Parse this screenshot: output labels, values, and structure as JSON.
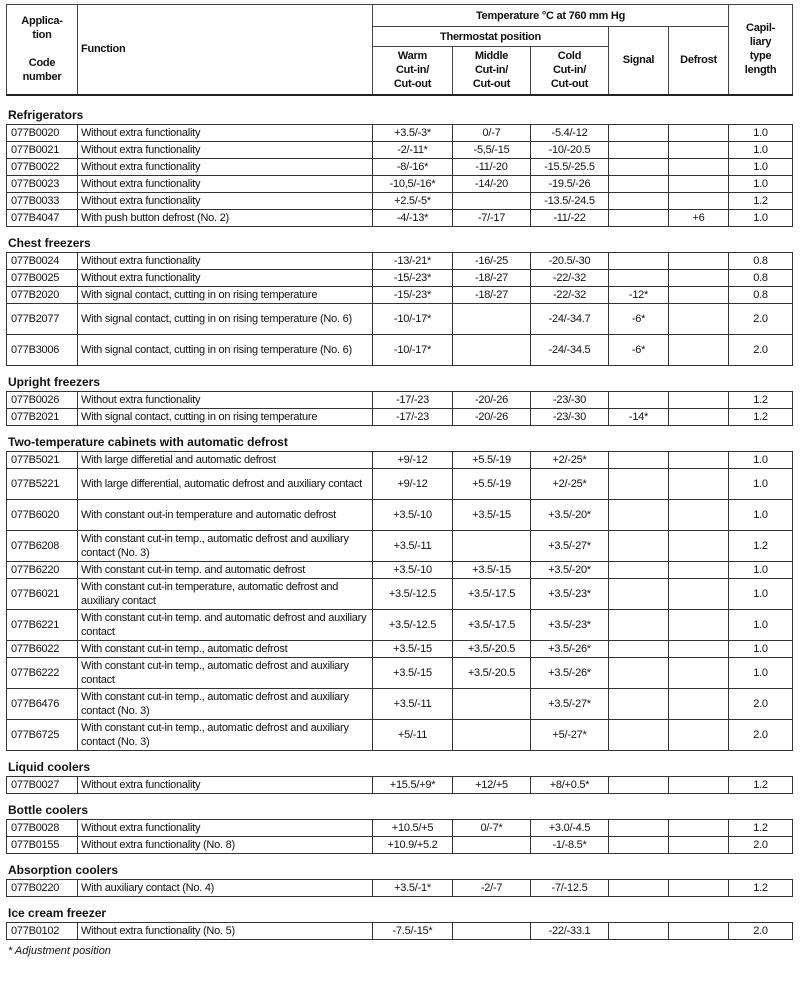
{
  "header": {
    "app_code": "Applica-\ntion\n\nCode\nnumber",
    "function": "Function",
    "temperature": "Temperature °C at 760 mm Hg",
    "thermostat": "Thermostat position",
    "warm": "Warm\nCut-in/\nCut-out",
    "middle": "Middle\nCut-in/\nCut-out",
    "cold": "Cold\nCut-in/\nCut-out",
    "signal": "Signal",
    "defrost": "Defrost",
    "capillary": "Capil-\nliary\ntype\nlength"
  },
  "sections": [
    {
      "title": "Refrigerators",
      "rows": [
        [
          "077B0020",
          "Without extra functionality",
          "+3.5/-3*",
          "0/-7",
          "-5.4/-12",
          "",
          "",
          "1.0"
        ],
        [
          "077B0021",
          "Without extra functionality",
          "-2/-11*",
          "-5,5/-15",
          "-10/-20.5",
          "",
          "",
          "1.0"
        ],
        [
          "077B0022",
          "Without extra functionality",
          "-8/-16*",
          "-11/-20",
          "-15.5/-25.5",
          "",
          "",
          "1.0"
        ],
        [
          "077B0023",
          "Without extra functionality",
          "-10,5/-16*",
          "-14/-20",
          "-19.5/-26",
          "",
          "",
          "1.0"
        ],
        [
          "077B0033",
          "Without extra functionality",
          "+2.5/-5*",
          "",
          "-13.5/-24.5",
          "",
          "",
          "1.2"
        ],
        [
          "077B4047",
          "With push button defrost (No. 2)",
          "-4/-13*",
          "-7/-17",
          "-11/-22",
          "",
          "+6",
          "1.0"
        ]
      ]
    },
    {
      "title": "Chest freezers",
      "rows": [
        [
          "077B0024",
          "Without extra functionality",
          "-13/-21*",
          "-16/-25",
          "-20.5/-30",
          "",
          "",
          "0.8"
        ],
        [
          "077B0025",
          "Without extra functionality",
          "-15/-23*",
          "-18/-27",
          "-22/-32",
          "",
          "",
          "0.8"
        ],
        [
          "077B2020",
          "With signal contact, cutting in on rising temperature",
          "-15/-23*",
          "-18/-27",
          "-22/-32",
          "-12*",
          "",
          "0.8"
        ],
        [
          "077B2077",
          "With signal contact, cutting in on rising temperature (No. 6)",
          "-10/-17*",
          "",
          "-24/-34.7",
          "-6*",
          "",
          "2.0"
        ],
        [
          "077B3006",
          "With signal contact, cutting in on rising temperature (No. 6)",
          "-10/-17*",
          "",
          "-24/-34.5",
          "-6*",
          "",
          "2.0"
        ]
      ]
    },
    {
      "title": "Upright freezers",
      "rows": [
        [
          "077B0026",
          "Without extra functionality",
          "-17/-23",
          "-20/-26",
          "-23/-30",
          "",
          "",
          "1.2"
        ],
        [
          "077B2021",
          "With signal contact, cutting in on rising temperature",
          "-17/-23",
          "-20/-26",
          "-23/-30",
          "-14*",
          "",
          "1.2"
        ]
      ]
    },
    {
      "title": "Two-temperature cabinets with automatic defrost",
      "rows": [
        [
          "077B5021",
          "With large differetial and automatic defrost",
          "+9/-12",
          "+5.5/-19",
          "+2/-25*",
          "",
          "",
          "1.0"
        ],
        [
          "077B5221",
          "With large differential, automatic defrost and auxiliary contact",
          "+9/-12",
          "+5.5/-19",
          "+2/-25*",
          "",
          "",
          "1.0"
        ],
        [
          "077B6020",
          "With constant out-in temperature and automatic defrost",
          "+3.5/-10",
          "+3.5/-15",
          "+3.5/-20*",
          "",
          "",
          "1.0"
        ],
        [
          "077B6208",
          "With constant cut-in temp., automatic defrost and auxiliary contact (No. 3)",
          "+3.5/-11",
          "",
          "+3.5/-27*",
          "",
          "",
          "1.2"
        ],
        [
          "077B6220",
          "With constant cut-in temp. and automatic defrost",
          "+3.5/-10",
          "+3.5/-15",
          "+3.5/-20*",
          "",
          "",
          "1.0"
        ],
        [
          "077B6021",
          "With constant cut-in temperature, automatic defrost and auxiliary contact",
          "+3.5/-12.5",
          "+3.5/-17.5",
          "+3.5/-23*",
          "",
          "",
          "1.0"
        ],
        [
          "077B6221",
          "With constant cut-in temp. and automatic defrost and auxiliary contact",
          "+3.5/-12.5",
          "+3.5/-17.5",
          "+3.5/-23*",
          "",
          "",
          "1.0"
        ],
        [
          "077B6022",
          "With constant cut-in temp., automatic defrost",
          "+3.5/-15",
          "+3.5/-20.5",
          "+3.5/-26*",
          "",
          "",
          "1.0"
        ],
        [
          "077B6222",
          "With constant cut-in temp., automatic defrost and auxiliary contact",
          "+3.5/-15",
          "+3.5/-20.5",
          "+3.5/-26*",
          "",
          "",
          "1.0"
        ],
        [
          "077B6476",
          "With constant cut-in temp., automatic defrost and auxiliary contact (No. 3)",
          "+3.5/-11",
          "",
          "+3.5/-27*",
          "",
          "",
          "2.0"
        ],
        [
          "077B6725",
          "With constant cut-in temp., automatic defrost and auxiliary contact (No. 3)",
          "+5/-11",
          "",
          "+5/-27*",
          "",
          "",
          "2.0"
        ]
      ]
    },
    {
      "title": "Liquid coolers",
      "rows": [
        [
          "077B0027",
          "Without extra functionality",
          "+15.5/+9*",
          "+12/+5",
          "+8/+0.5*",
          "",
          "",
          "1.2"
        ]
      ]
    },
    {
      "title": "Bottle coolers",
      "rows": [
        [
          "077B0028",
          "Without extra functionality",
          "+10.5/+5",
          "0/-7*",
          "+3.0/-4.5",
          "",
          "",
          "1.2"
        ],
        [
          "077B0155",
          "Without extra functionality (No. 8)",
          "+10.9/+5.2",
          "",
          "-1/-8.5*",
          "",
          "",
          "2.0"
        ]
      ]
    },
    {
      "title": "Absorption coolers",
      "rows": [
        [
          "077B0220",
          "With auxiliary contact (No. 4)",
          "+3.5/-1*",
          "-2/-7",
          "-7/-12.5",
          "",
          "",
          "1.2"
        ]
      ]
    },
    {
      "title": "Ice cream freezer",
      "rows": [
        [
          "077B0102",
          "Without extra functionality (No. 5)",
          "-7.5/-15*",
          "",
          "-22/-33.1",
          "",
          "",
          "2.0"
        ]
      ]
    }
  ],
  "footnote": "* Adjustment position"
}
